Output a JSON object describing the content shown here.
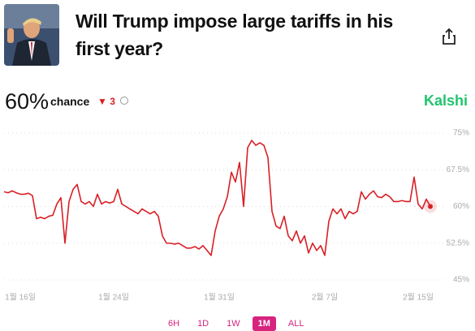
{
  "header": {
    "title": "Will Trump impose large tariffs in his first year?"
  },
  "summary": {
    "chance": "60%",
    "caption": "chance",
    "change": 3,
    "brand": "Kalshi"
  },
  "chart_data": {
    "type": "line",
    "color": "#d91f26",
    "values": [
      63,
      62.8,
      63.2,
      62.8,
      62.5,
      62.5,
      62.7,
      62.2,
      57.5,
      57.8,
      57.5,
      58,
      58.2,
      60.5,
      61.8,
      52.5,
      61,
      63.5,
      64.5,
      61,
      60.5,
      61,
      60,
      62.5,
      60.5,
      61,
      60.7,
      61,
      63.5,
      60.5,
      60,
      59.5,
      59,
      58.5,
      59.5,
      59,
      58.5,
      59,
      58,
      54,
      52.5,
      52.5,
      52.3,
      52.5,
      52,
      51.5,
      51.5,
      51.8,
      51.3,
      52,
      51,
      50,
      55,
      58,
      59.5,
      62,
      67,
      65,
      69,
      60,
      72,
      73.5,
      72.5,
      73,
      72.5,
      70,
      59,
      56,
      55.5,
      58,
      54,
      53,
      55,
      52.5,
      54,
      50.5,
      52.5,
      51,
      52,
      50,
      57,
      59.5,
      58.5,
      59.5,
      57.5,
      59,
      58.5,
      59,
      63,
      61.5,
      62.5,
      63.2,
      62,
      61.8,
      62.5,
      62,
      61,
      61,
      61.2,
      61,
      61,
      66,
      60.5,
      59.5,
      61.5,
      60
    ],
    "xticks": [
      {
        "value": 4,
        "label": "1월 16일"
      },
      {
        "value": 27,
        "label": "1월 24일"
      },
      {
        "value": 53,
        "label": "1월 31일"
      },
      {
        "value": 79,
        "label": "2월 7일"
      },
      {
        "value": 102,
        "label": "2월 15일"
      }
    ],
    "ylim": [
      45,
      75
    ],
    "yticks": [
      {
        "value": 75,
        "label": "75%"
      },
      {
        "value": 67.5,
        "label": "67.5%"
      },
      {
        "value": 60,
        "label": "60%"
      },
      {
        "value": 52.5,
        "label": "52.5%"
      },
      {
        "value": 45,
        "label": "45%"
      }
    ],
    "grid": true
  },
  "range_buttons": [
    {
      "label": "6H"
    },
    {
      "label": "1D"
    },
    {
      "label": "1W"
    },
    {
      "label": "1M",
      "selected": true
    },
    {
      "label": "ALL"
    }
  ]
}
